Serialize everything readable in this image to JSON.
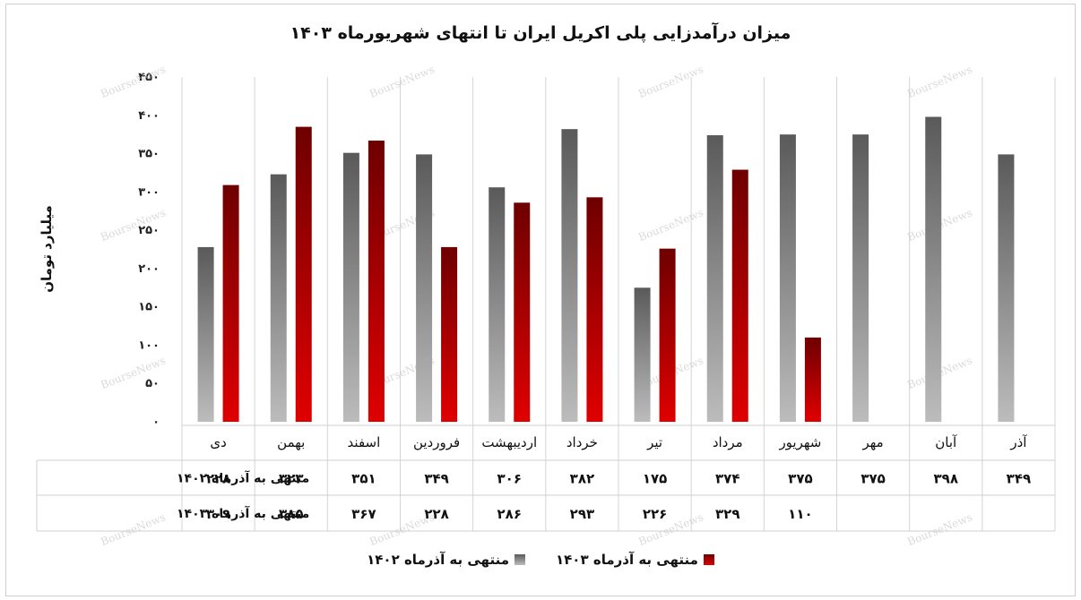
{
  "chart_data": {
    "type": "bar",
    "title": "میزان درآمدزایی پلی اکریل ایران تا انتهای شهریورماه ۱۴۰۳",
    "ylabel": "میلیارد تومان",
    "xlabel": "",
    "ylim": [
      0,
      450
    ],
    "yticks": [
      {
        "value": 0,
        "label": "۰"
      },
      {
        "value": 50,
        "label": "۵۰"
      },
      {
        "value": 100,
        "label": "۱۰۰"
      },
      {
        "value": 150,
        "label": "۱۵۰"
      },
      {
        "value": 200,
        "label": "۲۰۰"
      },
      {
        "value": 250,
        "label": "۲۵۰"
      },
      {
        "value": 300,
        "label": "۳۰۰"
      },
      {
        "value": 350,
        "label": "۳۵۰"
      },
      {
        "value": 400,
        "label": "۴۰۰"
      },
      {
        "value": 450,
        "label": "۴۵۰"
      }
    ],
    "categories": [
      "دی",
      "بهمن",
      "اسفند",
      "فروردین",
      "اردیبهشت",
      "خرداد",
      "تیر",
      "مرداد",
      "شهریور",
      "مهر",
      "آبان",
      "آذر"
    ],
    "series": [
      {
        "name": "منتهی به آذرماه ۱۴۰۲",
        "color": "#808080",
        "values": [
          228,
          323,
          351,
          349,
          306,
          382,
          175,
          374,
          375,
          375,
          398,
          349
        ],
        "labels": [
          "۲۲۸",
          "۳۲۳",
          "۳۵۱",
          "۳۴۹",
          "۳۰۶",
          "۳۸۲",
          "۱۷۵",
          "۳۷۴",
          "۳۷۵",
          "۳۷۵",
          "۳۹۸",
          "۳۴۹"
        ]
      },
      {
        "name": "منتهی به آذرماه ۱۴۰۳",
        "color": "#c00000",
        "values": [
          309,
          385,
          367,
          228,
          286,
          293,
          226,
          329,
          110,
          null,
          null,
          null
        ],
        "labels": [
          "۳۰۹",
          "۳۸۵",
          "۳۶۷",
          "۲۲۸",
          "۲۸۶",
          "۲۹۳",
          "۲۲۶",
          "۳۲۹",
          "۱۱۰",
          "",
          "",
          ""
        ]
      }
    ],
    "grid": true,
    "legend": "bottom",
    "data_table": true
  },
  "watermark": "BourseNews"
}
